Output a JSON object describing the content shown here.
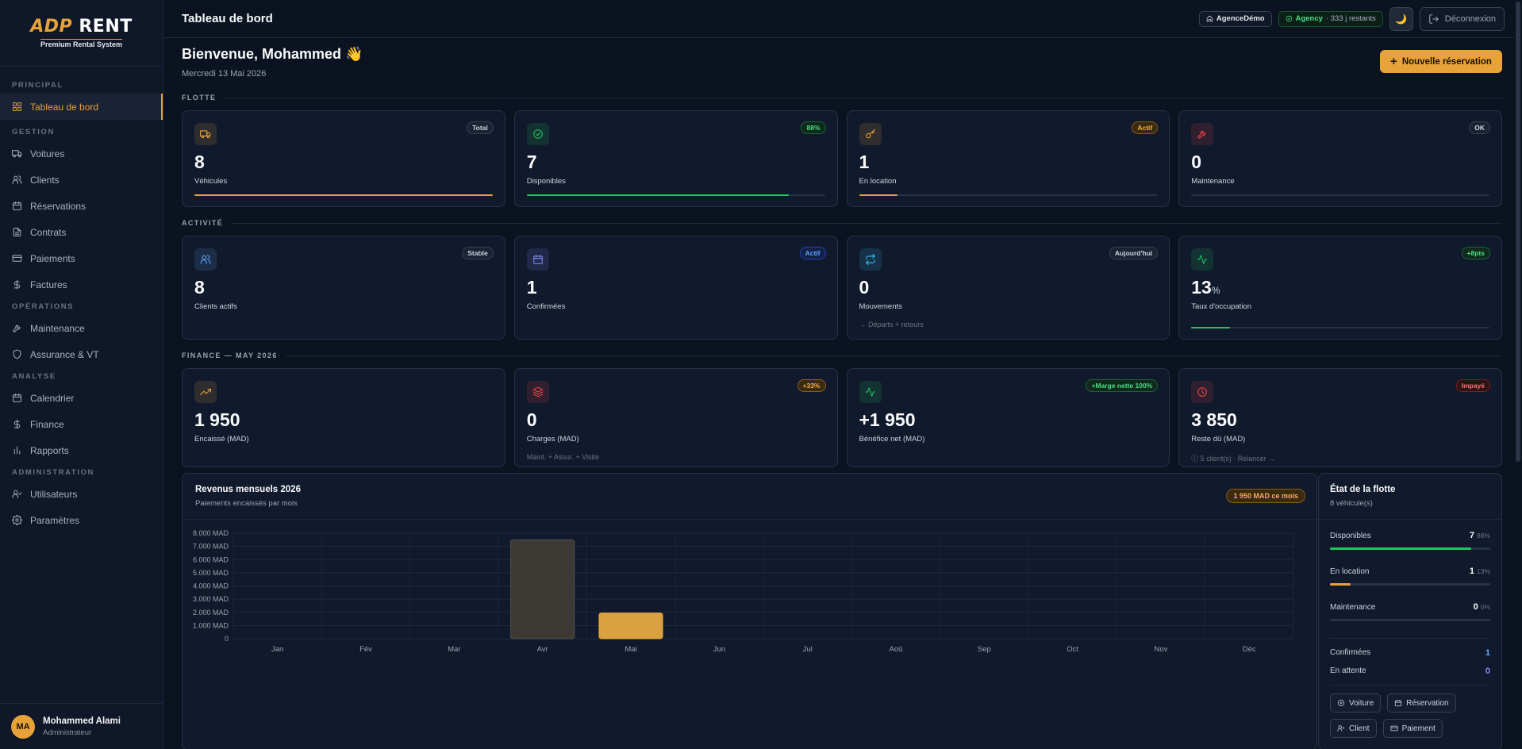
{
  "brand": {
    "name_part1": "ADP",
    "name_part2": "RENT",
    "tagline": "Premium Rental System"
  },
  "sidebar": {
    "sections": [
      {
        "label": "PRINCIPAL",
        "items": [
          {
            "label": "Tableau de bord",
            "icon": "grid-icon",
            "active": true
          }
        ]
      },
      {
        "label": "GESTION",
        "items": [
          {
            "label": "Voitures",
            "icon": "truck-icon"
          },
          {
            "label": "Clients",
            "icon": "users-icon"
          },
          {
            "label": "Réservations",
            "icon": "calendar-icon"
          },
          {
            "label": "Contrats",
            "icon": "file-icon"
          },
          {
            "label": "Paiements",
            "icon": "credit-card-icon"
          },
          {
            "label": "Factures",
            "icon": "dollar-icon"
          }
        ]
      },
      {
        "label": "OPÉRATIONS",
        "items": [
          {
            "label": "Maintenance",
            "icon": "wrench-icon"
          },
          {
            "label": "Assurance & VT",
            "icon": "shield-icon"
          }
        ]
      },
      {
        "label": "ANALYSE",
        "items": [
          {
            "label": "Calendrier",
            "icon": "calendar-icon"
          },
          {
            "label": "Finance",
            "icon": "dollar-icon"
          },
          {
            "label": "Rapports",
            "icon": "bar-chart-icon"
          }
        ]
      },
      {
        "label": "ADMINISTRATION",
        "items": [
          {
            "label": "Utilisateurs",
            "icon": "user-check-icon"
          },
          {
            "label": "Paramètres",
            "icon": "gear-icon"
          }
        ]
      }
    ],
    "user": {
      "initials": "MA",
      "name": "Mohammed Alami",
      "role": "Administrateur"
    }
  },
  "topbar": {
    "title": "Tableau de bord",
    "agency_chip": "AgenceDémo",
    "plan_chip": "Agency",
    "plan_remaining": "· 333 j restants",
    "logout_label": "Déconnexion"
  },
  "header": {
    "welcome": "Bienvenue, Mohammed",
    "wave": "👋",
    "date": "Mercredi 13 Mai 2026",
    "new_reservation": "Nouvelle réservation"
  },
  "sections": {
    "flotte": "FLOTTE",
    "activite": "ACTIVITÉ",
    "finance": "FINANCE — MAY 2026"
  },
  "flotte_cards": [
    {
      "value": "8",
      "label": "Véhicules",
      "badge": "Total",
      "badge_style": "",
      "icon": "truck-icon",
      "color": "#e8a23a",
      "progress": 1.0
    },
    {
      "value": "7",
      "label": "Disponibles",
      "badge": "88%",
      "badge_style": "green",
      "icon": "check-circle-icon",
      "color": "#22c55e",
      "progress": 0.88
    },
    {
      "value": "1",
      "label": "En location",
      "badge": "Actif",
      "badge_style": "orange",
      "icon": "key-icon",
      "color": "#e8a23a",
      "progress": 0.13
    },
    {
      "value": "0",
      "label": "Maintenance",
      "badge": "OK",
      "badge_style": "",
      "icon": "wrench-icon",
      "color": "#ef4444",
      "progress": 0
    }
  ],
  "activite_cards": [
    {
      "value": "8",
      "label": "Clients actifs",
      "badge": "Stable",
      "badge_style": "",
      "icon": "users-icon",
      "color": "#60a5fa"
    },
    {
      "value": "1",
      "label": "Confirmées",
      "badge": "Actif",
      "badge_style": "blue",
      "icon": "calendar-icon",
      "color": "#818cf8"
    },
    {
      "value": "0",
      "label": "Mouvements",
      "badge": "Aujourd'hui",
      "badge_style": "",
      "icon": "repeat-icon",
      "color": "#38bdf8",
      "sub": "→ Départs + retours"
    },
    {
      "value": "13",
      "unit": "%",
      "label": "Taux d'occupation",
      "badge": "+8pts",
      "badge_style": "green",
      "icon": "activity-icon",
      "color": "#22c55e",
      "progress": 0.13
    }
  ],
  "finance_cards": [
    {
      "value": "1 950",
      "label": "Encaissé (MAD)",
      "badge": "",
      "badge_style": "",
      "icon": "trending-up-icon",
      "color": "#e8a23a"
    },
    {
      "value": "0",
      "label": "Charges (MAD)",
      "badge": "+33%",
      "badge_style": "orange",
      "icon": "layers-icon",
      "color": "#ef4444",
      "sub": "Maint. + Assur. + Visite"
    },
    {
      "value": "+1 950",
      "label": "Bénéfice net (MAD)",
      "badge": "+Marge nette 100%",
      "badge_style": "green",
      "icon": "activity-icon",
      "color": "#22c55e"
    },
    {
      "value": "3 850",
      "label": "Reste dû (MAD)",
      "badge": "Impayé",
      "badge_style": "red",
      "icon": "clock-icon",
      "color": "#ef4444",
      "sub": "ⓘ 5 client(s) · Relancer →"
    }
  ],
  "revenue_panel": {
    "title": "Revenus mensuels 2026",
    "subtitle": "Paiements encaissés par mois",
    "badge": "1 950 MAD ce mois"
  },
  "chart_data": {
    "type": "bar",
    "categories": [
      "Jan",
      "Fév",
      "Mar",
      "Avr",
      "Mai",
      "Jun",
      "Jul",
      "Aoû",
      "Sep",
      "Oct",
      "Nov",
      "Déc"
    ],
    "values": [
      0,
      0,
      0,
      7500,
      1950,
      0,
      0,
      0,
      0,
      0,
      0,
      0
    ],
    "ylim": [
      0,
      8000
    ],
    "yticks": [
      "0",
      "1.000 MAD",
      "2.000 MAD",
      "3.000 MAD",
      "4.000 MAD",
      "5.000 MAD",
      "6.000 MAD",
      "7.000 MAD",
      "8.000 MAD"
    ],
    "bar_colors": {
      "past": "#3d3a36",
      "current": "#d9a23e"
    },
    "grid": true
  },
  "fleet_panel": {
    "title": "État de la flotte",
    "subtitle": "8 véhicule(s)",
    "rows": [
      {
        "label": "Disponibles",
        "value": "7",
        "pct": "88%",
        "color": "#22c55e",
        "fill": 0.88
      },
      {
        "label": "En location",
        "value": "1",
        "pct": "13%",
        "color": "#e8a23a",
        "fill": 0.13
      },
      {
        "label": "Maintenance",
        "value": "0",
        "pct": "0%",
        "color": "#ef4444",
        "fill": 0
      }
    ],
    "status": [
      {
        "label": "Confirmées",
        "value": "1",
        "color": "#60a5fa"
      },
      {
        "label": "En attente",
        "value": "0",
        "color": "#818cf8"
      }
    ],
    "quick_actions": [
      {
        "label": "Voiture",
        "icon": "plus-circle-icon"
      },
      {
        "label": "Réservation",
        "icon": "calendar-icon"
      },
      {
        "label": "Client",
        "icon": "user-plus-icon"
      },
      {
        "label": "Paiement",
        "icon": "credit-card-icon"
      }
    ]
  }
}
